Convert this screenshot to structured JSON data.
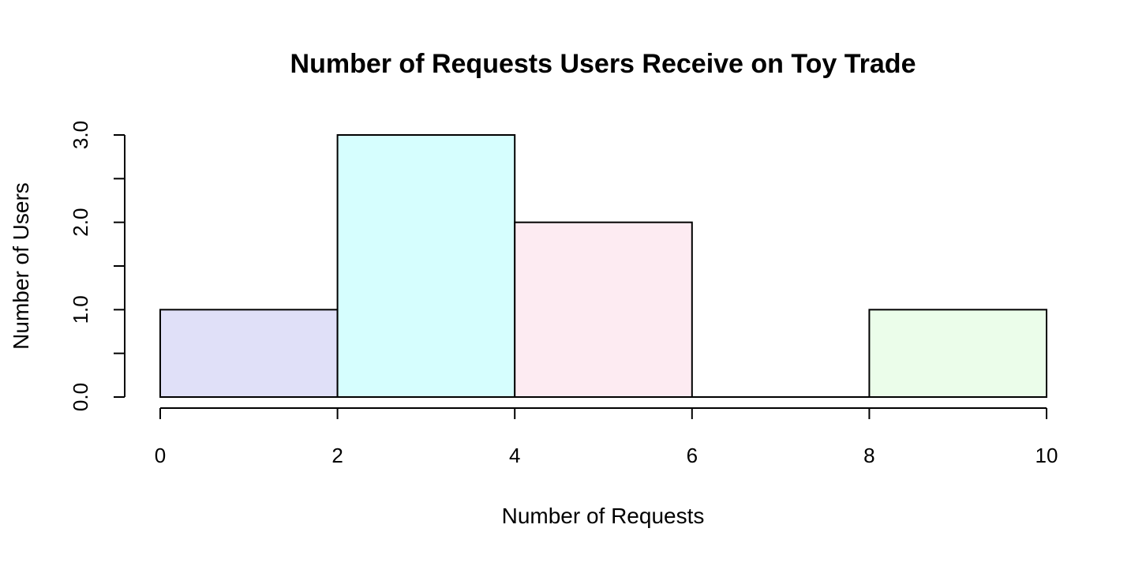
{
  "chart_data": {
    "type": "bar",
    "histogram": true,
    "title": "Number of Requests Users Receive on Toy Trade",
    "xlabel": "Number of Requests",
    "ylabel": "Number of Users",
    "bins": [
      {
        "x0": 0,
        "x1": 2,
        "count": 1,
        "color": "#e0e0f8"
      },
      {
        "x0": 2,
        "x1": 4,
        "count": 3,
        "color": "#d6fefe"
      },
      {
        "x0": 4,
        "x1": 6,
        "count": 2,
        "color": "#fdebf2"
      },
      {
        "x0": 6,
        "x1": 8,
        "count": 0,
        "color": "#ffffff"
      },
      {
        "x0": 8,
        "x1": 10,
        "count": 1,
        "color": "#ebfdea"
      }
    ],
    "xlim": [
      0,
      10
    ],
    "ylim": [
      0,
      3
    ],
    "x_ticks": [
      0,
      2,
      4,
      6,
      8,
      10
    ],
    "x_tick_labels": [
      "0",
      "2",
      "4",
      "6",
      "8",
      "10"
    ],
    "y_ticks": [
      0,
      0.5,
      1,
      1.5,
      2,
      2.5,
      3
    ],
    "y_tick_labels": [
      "0.0",
      "",
      "1.0",
      "",
      "2.0",
      "",
      "3.0"
    ],
    "grid": false,
    "legend": "none"
  }
}
